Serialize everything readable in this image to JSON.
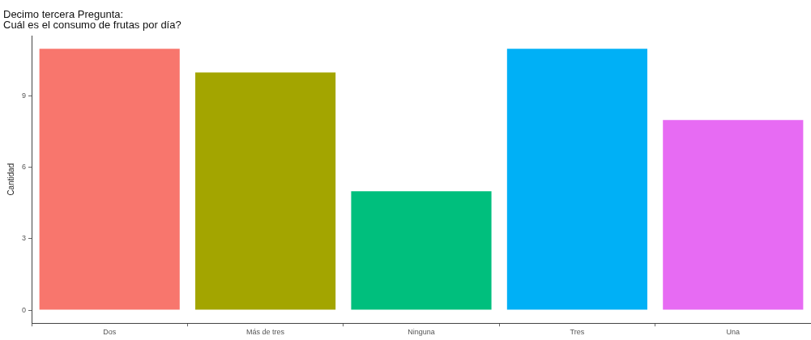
{
  "chart_data": {
    "type": "bar",
    "title": "Decimo tercera Pregunta:\nCuál es el consumo de frutas por día?",
    "ylabel": "Cantidad",
    "categories": [
      "Dos",
      "Más de tres",
      "Ninguna",
      "Tres",
      "Una"
    ],
    "values": [
      11,
      10,
      5,
      11,
      8
    ],
    "colors": [
      "#f8766d",
      "#a3a500",
      "#00bf7d",
      "#00b0f6",
      "#e76bf3"
    ],
    "ylim": [
      -0.55,
      11.55
    ],
    "yticks": [
      0,
      3,
      6,
      9
    ],
    "grid": false,
    "legend": false
  }
}
